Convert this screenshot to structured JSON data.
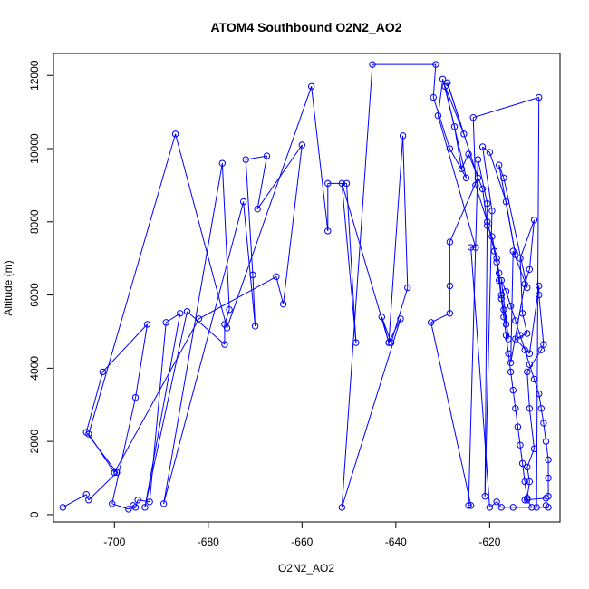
{
  "chart_data": {
    "type": "line",
    "title": "ATOM4 Southbound O2N2_AO2",
    "xlabel": "O2N2_AO2",
    "ylabel": "Altitude (m)",
    "xlim": [
      -713,
      -605
    ],
    "ylim": [
      -200,
      12600
    ],
    "x_ticks": [
      -700,
      -680,
      -660,
      -640,
      -620
    ],
    "y_ticks": [
      0,
      2000,
      4000,
      6000,
      8000,
      10000,
      12000
    ],
    "grid": false,
    "legend": "none",
    "marker": "open-circle",
    "series": [
      {
        "color": "#0000ff",
        "points": [
          [
            -711,
            200
          ],
          [
            -706,
            550
          ],
          [
            -705.5,
            400
          ],
          [
            -699.5,
            1150
          ],
          [
            -706,
            2250
          ],
          [
            -702.5,
            3900
          ],
          [
            -693,
            5200
          ],
          [
            -695.5,
            3200
          ],
          [
            -700.5,
            300
          ],
          [
            -697,
            150
          ],
          [
            -696,
            250
          ],
          [
            -695.5,
            200
          ],
          [
            -695,
            400
          ],
          [
            -692.5,
            350
          ],
          [
            -689,
            5250
          ],
          [
            -686,
            5500
          ],
          [
            -693.5,
            200
          ],
          [
            -684.5,
            5550
          ],
          [
            -676.5,
            4650
          ],
          [
            -676.5,
            5200
          ],
          [
            -675.5,
            5600
          ],
          [
            -677,
            9600
          ],
          [
            -689.5,
            300
          ],
          [
            -672.5,
            8550
          ],
          [
            -670,
            5150
          ],
          [
            -670.5,
            6550
          ],
          [
            -672,
            9700
          ],
          [
            -667.5,
            9800
          ],
          [
            -669.5,
            8350
          ],
          [
            -660,
            10100
          ],
          [
            -664,
            5750
          ],
          [
            -665.5,
            6500
          ],
          [
            -682,
            5350
          ],
          [
            -700,
            1150
          ],
          [
            -705.5,
            2200
          ],
          [
            -687,
            10400
          ],
          [
            -676,
            5100
          ],
          [
            -658,
            11700
          ],
          [
            -654.5,
            7750
          ],
          [
            -654.5,
            9050
          ],
          [
            -650.5,
            9050
          ],
          [
            -648.5,
            4700
          ],
          [
            -651.5,
            9050
          ],
          [
            -641.5,
            4700
          ],
          [
            -643,
            5400
          ],
          [
            -641,
            4700
          ],
          [
            -637.5,
            6200
          ],
          [
            -638.5,
            10350
          ],
          [
            -641.5,
            4700
          ],
          [
            -639,
            5350
          ],
          [
            -651.5,
            200
          ],
          [
            -645,
            12300
          ],
          [
            -631.5,
            12300
          ],
          [
            -632,
            11400
          ],
          [
            -628.5,
            10000
          ],
          [
            -625,
            9200
          ],
          [
            -629.5,
            11700
          ],
          [
            -625.5,
            10400
          ],
          [
            -629,
            11800
          ],
          [
            -622.5,
            9200
          ],
          [
            -628.5,
            7450
          ],
          [
            -628.5,
            6250
          ],
          [
            -628.5,
            5500
          ],
          [
            -632.5,
            5250
          ],
          [
            -624,
            250
          ],
          [
            -624.5,
            250
          ],
          [
            -622.5,
            9700
          ],
          [
            -620.5,
            8500
          ],
          [
            -621,
            500
          ],
          [
            -619.5,
            8300
          ],
          [
            -621.5,
            10050
          ],
          [
            -620,
            9900
          ],
          [
            -616.5,
            8550
          ],
          [
            -614.5,
            7100
          ],
          [
            -618,
            9550
          ],
          [
            -617,
            9200
          ],
          [
            -612,
            6200
          ],
          [
            -615,
            7200
          ],
          [
            -615.5,
            4150
          ],
          [
            -612.5,
            6300
          ],
          [
            -611.5,
            6700
          ],
          [
            -610.5,
            8050
          ],
          [
            -613.5,
            7000
          ],
          [
            -613,
            5500
          ],
          [
            -612,
            4950
          ],
          [
            -614.5,
            4800
          ],
          [
            -611.5,
            4400
          ],
          [
            -609.5,
            6250
          ],
          [
            -609.5,
            6000
          ],
          [
            -608.5,
            4650
          ],
          [
            -609,
            4500
          ],
          [
            -612,
            3900
          ],
          [
            -611.5,
            2900
          ],
          [
            -610.5,
            1800
          ],
          [
            -612,
            1300
          ],
          [
            -611.5,
            900
          ],
          [
            -612,
            450
          ],
          [
            -612.5,
            400
          ],
          [
            -608,
            450
          ],
          [
            -608,
            250
          ],
          [
            -607.5,
            200
          ],
          [
            -610,
            200
          ],
          [
            -609.5,
            11400
          ],
          [
            -623.5,
            10850
          ],
          [
            -623,
            9000
          ],
          [
            -620.5,
            8000
          ],
          [
            -619,
            7200
          ],
          [
            -618.5,
            6900
          ],
          [
            -618,
            6400
          ],
          [
            -617.5,
            5900
          ],
          [
            -617,
            5400
          ],
          [
            -616.5,
            4900
          ],
          [
            -616,
            4400
          ],
          [
            -615.5,
            3900
          ],
          [
            -615,
            3400
          ],
          [
            -614.5,
            2900
          ],
          [
            -614,
            2400
          ],
          [
            -613.5,
            1900
          ],
          [
            -613,
            1400
          ],
          [
            -612.5,
            900
          ],
          [
            -612,
            400
          ],
          [
            -611,
            200
          ],
          [
            -615,
            200
          ],
          [
            -617.5,
            200
          ],
          [
            -618.5,
            350
          ],
          [
            -620,
            200
          ],
          [
            -624,
            7300
          ],
          [
            -623,
            7300
          ],
          [
            -631,
            10900
          ],
          [
            -630,
            11900
          ],
          [
            -627.5,
            10600
          ],
          [
            -626,
            9450
          ],
          [
            -624.5,
            9850
          ],
          [
            -621.5,
            8900
          ],
          [
            -620.5,
            7900
          ],
          [
            -619.5,
            7600
          ],
          [
            -618.5,
            7000
          ],
          [
            -618,
            6600
          ],
          [
            -617.5,
            6000
          ],
          [
            -617,
            5600
          ],
          [
            -616.5,
            5200
          ],
          [
            -616,
            4800
          ],
          [
            -617.5,
            6400
          ],
          [
            -616.5,
            6100
          ],
          [
            -615.5,
            5700
          ],
          [
            -614.5,
            5300
          ],
          [
            -613.5,
            4900
          ],
          [
            -612.5,
            4500
          ],
          [
            -611.5,
            4100
          ],
          [
            -610.5,
            3700
          ],
          [
            -609.5,
            3300
          ],
          [
            -609,
            2900
          ],
          [
            -608.5,
            2500
          ],
          [
            -608,
            2000
          ],
          [
            -607.5,
            1500
          ],
          [
            -607.5,
            1000
          ],
          [
            -607.5,
            500
          ]
        ]
      }
    ]
  }
}
